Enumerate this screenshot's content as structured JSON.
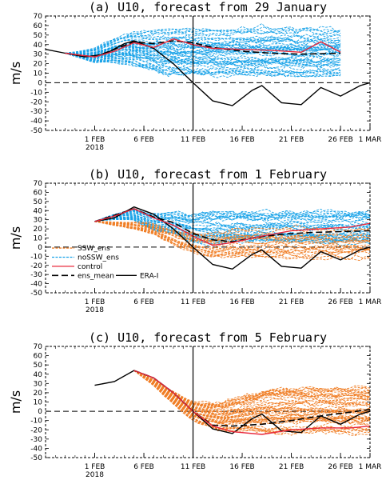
{
  "colors": {
    "ssw": "#f07f27",
    "nossw": "#1aa3e8",
    "control": "#e8283c",
    "ens_mean": "#000000",
    "erai": "#000000"
  },
  "chart_data": [
    {
      "type": "line",
      "title": "(a) U10, forecast from 29 January",
      "ylabel": "m/s",
      "xlabel": "",
      "ylim": [
        -50,
        70
      ],
      "yticks": [
        -50,
        -40,
        -30,
        -20,
        -10,
        0,
        10,
        20,
        30,
        40,
        50,
        60,
        70
      ],
      "xlim_days": [
        "2018-01-27",
        "2018-03-01"
      ],
      "xticks": [
        {
          "label": "1 FEB",
          "date": "2018-02-01"
        },
        {
          "label": "6 FEB",
          "date": "2018-02-06"
        },
        {
          "label": "11 FEB",
          "date": "2018-02-11"
        },
        {
          "label": "16 FEB",
          "date": "2018-02-16"
        },
        {
          "label": "21 FEB",
          "date": "2018-02-21"
        },
        {
          "label": "26 FEB",
          "date": "2018-02-26"
        },
        {
          "label": "1 MAR",
          "date": "2018-03-01"
        }
      ],
      "year_label": "2018",
      "vline_date": "2018-02-11",
      "forecast_start": "2018-01-29",
      "forecast_end": "2018-02-26",
      "ensemble_spread": {
        "noSSW": [
          [
            7,
            63
          ],
          [
            5,
            58
          ]
        ],
        "ssw": null
      },
      "series": [
        {
          "role": "erai",
          "x": [
            "2018-01-27",
            "2018-01-29",
            "2018-01-31",
            "2018-02-02",
            "2018-02-04",
            "2018-02-05",
            "2018-02-07",
            "2018-02-09",
            "2018-02-11",
            "2018-02-13",
            "2018-02-15",
            "2018-02-17",
            "2018-02-18",
            "2018-02-20",
            "2018-02-22",
            "2018-02-24",
            "2018-02-26",
            "2018-02-28",
            "2018-03-01"
          ],
          "y": [
            35,
            31,
            27,
            30,
            41,
            44,
            36,
            20,
            0,
            -19,
            -24,
            -8,
            -3,
            -21,
            -23,
            -5,
            -14,
            -3,
            0
          ]
        },
        {
          "role": "ens_mean",
          "x": [
            "2018-01-29",
            "2018-02-01",
            "2018-02-03",
            "2018-02-05",
            "2018-02-07",
            "2018-02-09",
            "2018-02-11",
            "2018-02-13",
            "2018-02-16",
            "2018-02-19",
            "2018-02-22",
            "2018-02-26"
          ],
          "y": [
            31,
            27,
            35,
            43,
            41,
            44,
            42,
            37,
            33,
            31,
            30,
            31
          ]
        },
        {
          "role": "control",
          "x": [
            "2018-01-29",
            "2018-02-01",
            "2018-02-03",
            "2018-02-05",
            "2018-02-07",
            "2018-02-09",
            "2018-02-11",
            "2018-02-13",
            "2018-02-16",
            "2018-02-19",
            "2018-02-22",
            "2018-02-24",
            "2018-02-26"
          ],
          "y": [
            31,
            27,
            33,
            42,
            37,
            46,
            40,
            36,
            35,
            34,
            32,
            43,
            32
          ]
        }
      ]
    },
    {
      "type": "line",
      "title": "(b) U10, forecast from 1 February",
      "ylabel": "m/s",
      "xlabel": "",
      "ylim": [
        -50,
        70
      ],
      "yticks": [
        -50,
        -40,
        -30,
        -20,
        -10,
        0,
        10,
        20,
        30,
        40,
        50,
        60,
        70
      ],
      "xlim_days": [
        "2018-01-27",
        "2018-03-01"
      ],
      "xticks": [
        {
          "label": "1 FEB",
          "date": "2018-02-01"
        },
        {
          "label": "6 FEB",
          "date": "2018-02-06"
        },
        {
          "label": "11 FEB",
          "date": "2018-02-11"
        },
        {
          "label": "16 FEB",
          "date": "2018-02-16"
        },
        {
          "label": "21 FEB",
          "date": "2018-02-21"
        },
        {
          "label": "26 FEB",
          "date": "2018-02-26"
        },
        {
          "label": "1 MAR",
          "date": "2018-03-01"
        }
      ],
      "year_label": "2018",
      "vline_date": "2018-02-11",
      "forecast_start": "2018-02-01",
      "forecast_end": "2018-03-01",
      "legend": [
        "SSW_ens",
        "noSSW_ens",
        "control",
        "ens_mean",
        "ERA-I"
      ],
      "series": [
        {
          "role": "erai",
          "x": [
            "2018-02-01",
            "2018-02-03",
            "2018-02-05",
            "2018-02-07",
            "2018-02-09",
            "2018-02-11",
            "2018-02-13",
            "2018-02-15",
            "2018-02-17",
            "2018-02-18",
            "2018-02-20",
            "2018-02-22",
            "2018-02-24",
            "2018-02-26",
            "2018-02-28",
            "2018-03-01"
          ],
          "y": [
            28,
            32,
            44,
            36,
            20,
            0,
            -19,
            -24,
            -8,
            -3,
            -21,
            -23,
            -5,
            -14,
            -3,
            0
          ]
        },
        {
          "role": "ens_mean",
          "x": [
            "2018-02-01",
            "2018-02-03",
            "2018-02-05",
            "2018-02-07",
            "2018-02-09",
            "2018-02-11",
            "2018-02-13",
            "2018-02-15",
            "2018-02-17",
            "2018-02-20",
            "2018-02-23",
            "2018-02-26",
            "2018-03-01"
          ],
          "y": [
            28,
            35,
            42,
            33,
            27,
            15,
            8,
            6,
            10,
            14,
            16,
            17,
            18
          ]
        },
        {
          "role": "control",
          "x": [
            "2018-02-01",
            "2018-02-03",
            "2018-02-05",
            "2018-02-07",
            "2018-02-09",
            "2018-02-11",
            "2018-02-13",
            "2018-02-15",
            "2018-02-18",
            "2018-02-21",
            "2018-02-24",
            "2018-02-27",
            "2018-03-01"
          ],
          "y": [
            28,
            34,
            42,
            32,
            24,
            12,
            2,
            5,
            12,
            18,
            20,
            22,
            26
          ]
        }
      ]
    },
    {
      "type": "line",
      "title": "(c) U10, forecast from 5 February",
      "ylabel": "m/s",
      "xlabel": "",
      "ylim": [
        -50,
        70
      ],
      "yticks": [
        -50,
        -40,
        -30,
        -20,
        -10,
        0,
        10,
        20,
        30,
        40,
        50,
        60,
        70
      ],
      "xlim_days": [
        "2018-01-27",
        "2018-03-01"
      ],
      "xticks": [
        {
          "label": "1 FEB",
          "date": "2018-02-01"
        },
        {
          "label": "6 FEB",
          "date": "2018-02-06"
        },
        {
          "label": "11 FEB",
          "date": "2018-02-11"
        },
        {
          "label": "16 FEB",
          "date": "2018-02-16"
        },
        {
          "label": "21 FEB",
          "date": "2018-02-21"
        },
        {
          "label": "26 FEB",
          "date": "2018-02-26"
        },
        {
          "label": "1 MAR",
          "date": "2018-03-01"
        }
      ],
      "year_label": "2018",
      "vline_date": "2018-02-11",
      "forecast_start": "2018-02-05",
      "forecast_end": "2018-03-01",
      "series": [
        {
          "role": "erai",
          "x": [
            "2018-02-01",
            "2018-02-03",
            "2018-02-05",
            "2018-02-07",
            "2018-02-09",
            "2018-02-11",
            "2018-02-13",
            "2018-02-15",
            "2018-02-17",
            "2018-02-18",
            "2018-02-20",
            "2018-02-22",
            "2018-02-24",
            "2018-02-26",
            "2018-02-28",
            "2018-03-01"
          ],
          "y": [
            28,
            32,
            44,
            36,
            20,
            0,
            -19,
            -24,
            -8,
            -3,
            -21,
            -23,
            -5,
            -14,
            -3,
            0
          ]
        },
        {
          "role": "ens_mean",
          "x": [
            "2018-02-05",
            "2018-02-07",
            "2018-02-09",
            "2018-02-11",
            "2018-02-13",
            "2018-02-15",
            "2018-02-18",
            "2018-02-21",
            "2018-02-24",
            "2018-02-27",
            "2018-03-01"
          ],
          "y": [
            44,
            36,
            20,
            0,
            -15,
            -16,
            -14,
            -10,
            -5,
            -1,
            2
          ]
        },
        {
          "role": "control",
          "x": [
            "2018-02-05",
            "2018-02-07",
            "2018-02-09",
            "2018-02-11",
            "2018-02-13",
            "2018-02-15",
            "2018-02-18",
            "2018-02-21",
            "2018-02-24",
            "2018-02-27",
            "2018-03-01"
          ],
          "y": [
            44,
            36,
            20,
            0,
            -16,
            -22,
            -25,
            -20,
            -18,
            -18,
            -16
          ]
        }
      ]
    }
  ]
}
